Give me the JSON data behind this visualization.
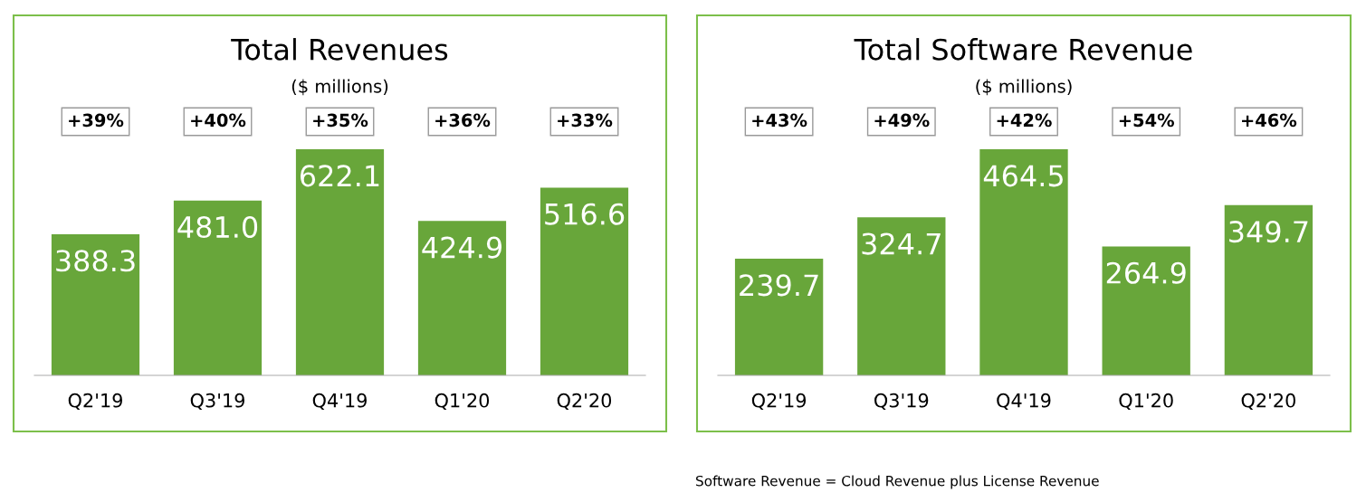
{
  "chart_data": [
    {
      "type": "bar",
      "title": "Total Revenues",
      "subtitle": "($ millions)",
      "categories": [
        "Q2'19",
        "Q3'19",
        "Q4'19",
        "Q1'20",
        "Q2'20"
      ],
      "values": [
        388.3,
        481.0,
        622.1,
        424.9,
        516.6
      ],
      "color": "#68a63a",
      "data_labels": true,
      "value_labels": [
        "388.3",
        "481.0",
        "622.1",
        "424.9",
        "516.6"
      ],
      "annotations": [
        "+39%",
        "+40%",
        "+35%",
        "+36%",
        "+33%"
      ]
    },
    {
      "type": "bar",
      "title": "Total Software Revenue",
      "subtitle": "($ millions)",
      "categories": [
        "Q2'19",
        "Q3'19",
        "Q4'19",
        "Q1'20",
        "Q2'20"
      ],
      "values": [
        239.7,
        324.7,
        464.5,
        264.9,
        349.7
      ],
      "color": "#68a63a",
      "data_labels": true,
      "value_labels": [
        "239.7",
        "324.7",
        "464.5",
        "264.9",
        "349.7"
      ],
      "annotations": [
        "+43%",
        "+49%",
        "+42%",
        "+54%",
        "+46%",
        "Software Revenue = Cloud Revenue plus License Revenue"
      ]
    }
  ]
}
